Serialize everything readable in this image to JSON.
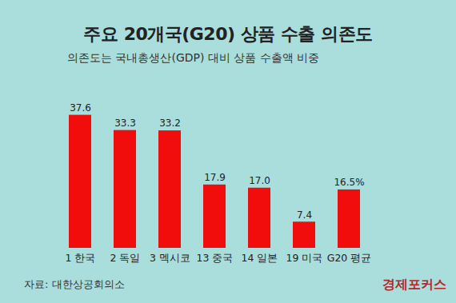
{
  "chart_data": {
    "type": "bar",
    "title": "주요 20개국(G20) 상품 수출 의존도",
    "subtitle": "의존도는 국내총생산(GDP) 대비 상품 수출액 비중",
    "source": "자료: 대한상공회의소",
    "credit": "경제포커스",
    "categories": [
      "1 한국",
      "2 독일",
      "3 멕시코",
      "13 중국",
      "14 일본",
      "19 미국",
      "G20 평균"
    ],
    "values": [
      37.6,
      33.3,
      33.2,
      17.9,
      17.0,
      7.4,
      16.5
    ],
    "value_labels": [
      "37.6",
      "33.3",
      "33.2",
      "17.9",
      "17.0",
      "7.4",
      "16.5%"
    ],
    "color": "#f20d0d",
    "ylim": [
      0,
      40
    ],
    "grid": false,
    "data_labels": true,
    "tick_labels": "x"
  }
}
